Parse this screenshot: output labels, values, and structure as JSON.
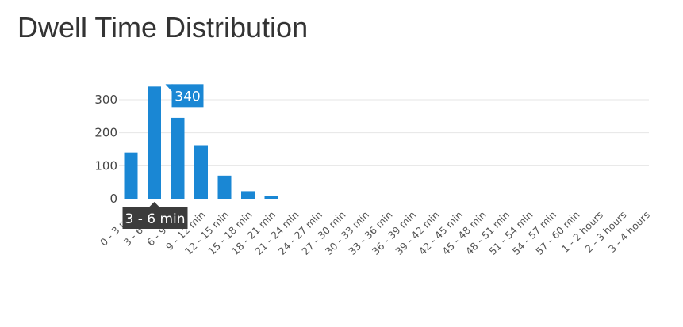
{
  "title": "Dwell Time Distribution",
  "colors": {
    "bar": "#1a87d4",
    "grid": "#e6e6e6",
    "hover_tip": "#1a87d4",
    "axis_tip": "#3c3c3c"
  },
  "chart_data": {
    "type": "bar",
    "title": "",
    "xlabel": "",
    "ylabel": "",
    "ylim": [
      0,
      340
    ],
    "yticks": [
      0,
      100,
      200,
      300
    ],
    "grid": true,
    "categories": [
      "0 - 3 min",
      "3 - 6 min",
      "6 - 9 min",
      "9 - 12 min",
      "12 - 15 min",
      "15 - 18 min",
      "18 - 21 min",
      "21 - 24 min",
      "24 - 27 min",
      "27 - 30 min",
      "30 - 33 min",
      "33 - 36 min",
      "36 - 39 min",
      "39 - 42 min",
      "42 - 45 min",
      "45 - 48 min",
      "48 - 51 min",
      "51 - 54 min",
      "54 - 57 min",
      "57 - 60 min",
      "1 - 2 hours",
      "2 - 3 hours",
      "3 - 4 hours"
    ],
    "values": [
      140,
      340,
      245,
      162,
      70,
      23,
      8,
      0,
      0,
      0,
      0,
      0,
      0,
      0,
      0,
      0,
      0,
      0,
      0,
      0,
      0,
      0,
      0
    ],
    "hovered_index": 1,
    "value_tooltip": "340",
    "axis_tooltip": "3 - 6 min"
  }
}
